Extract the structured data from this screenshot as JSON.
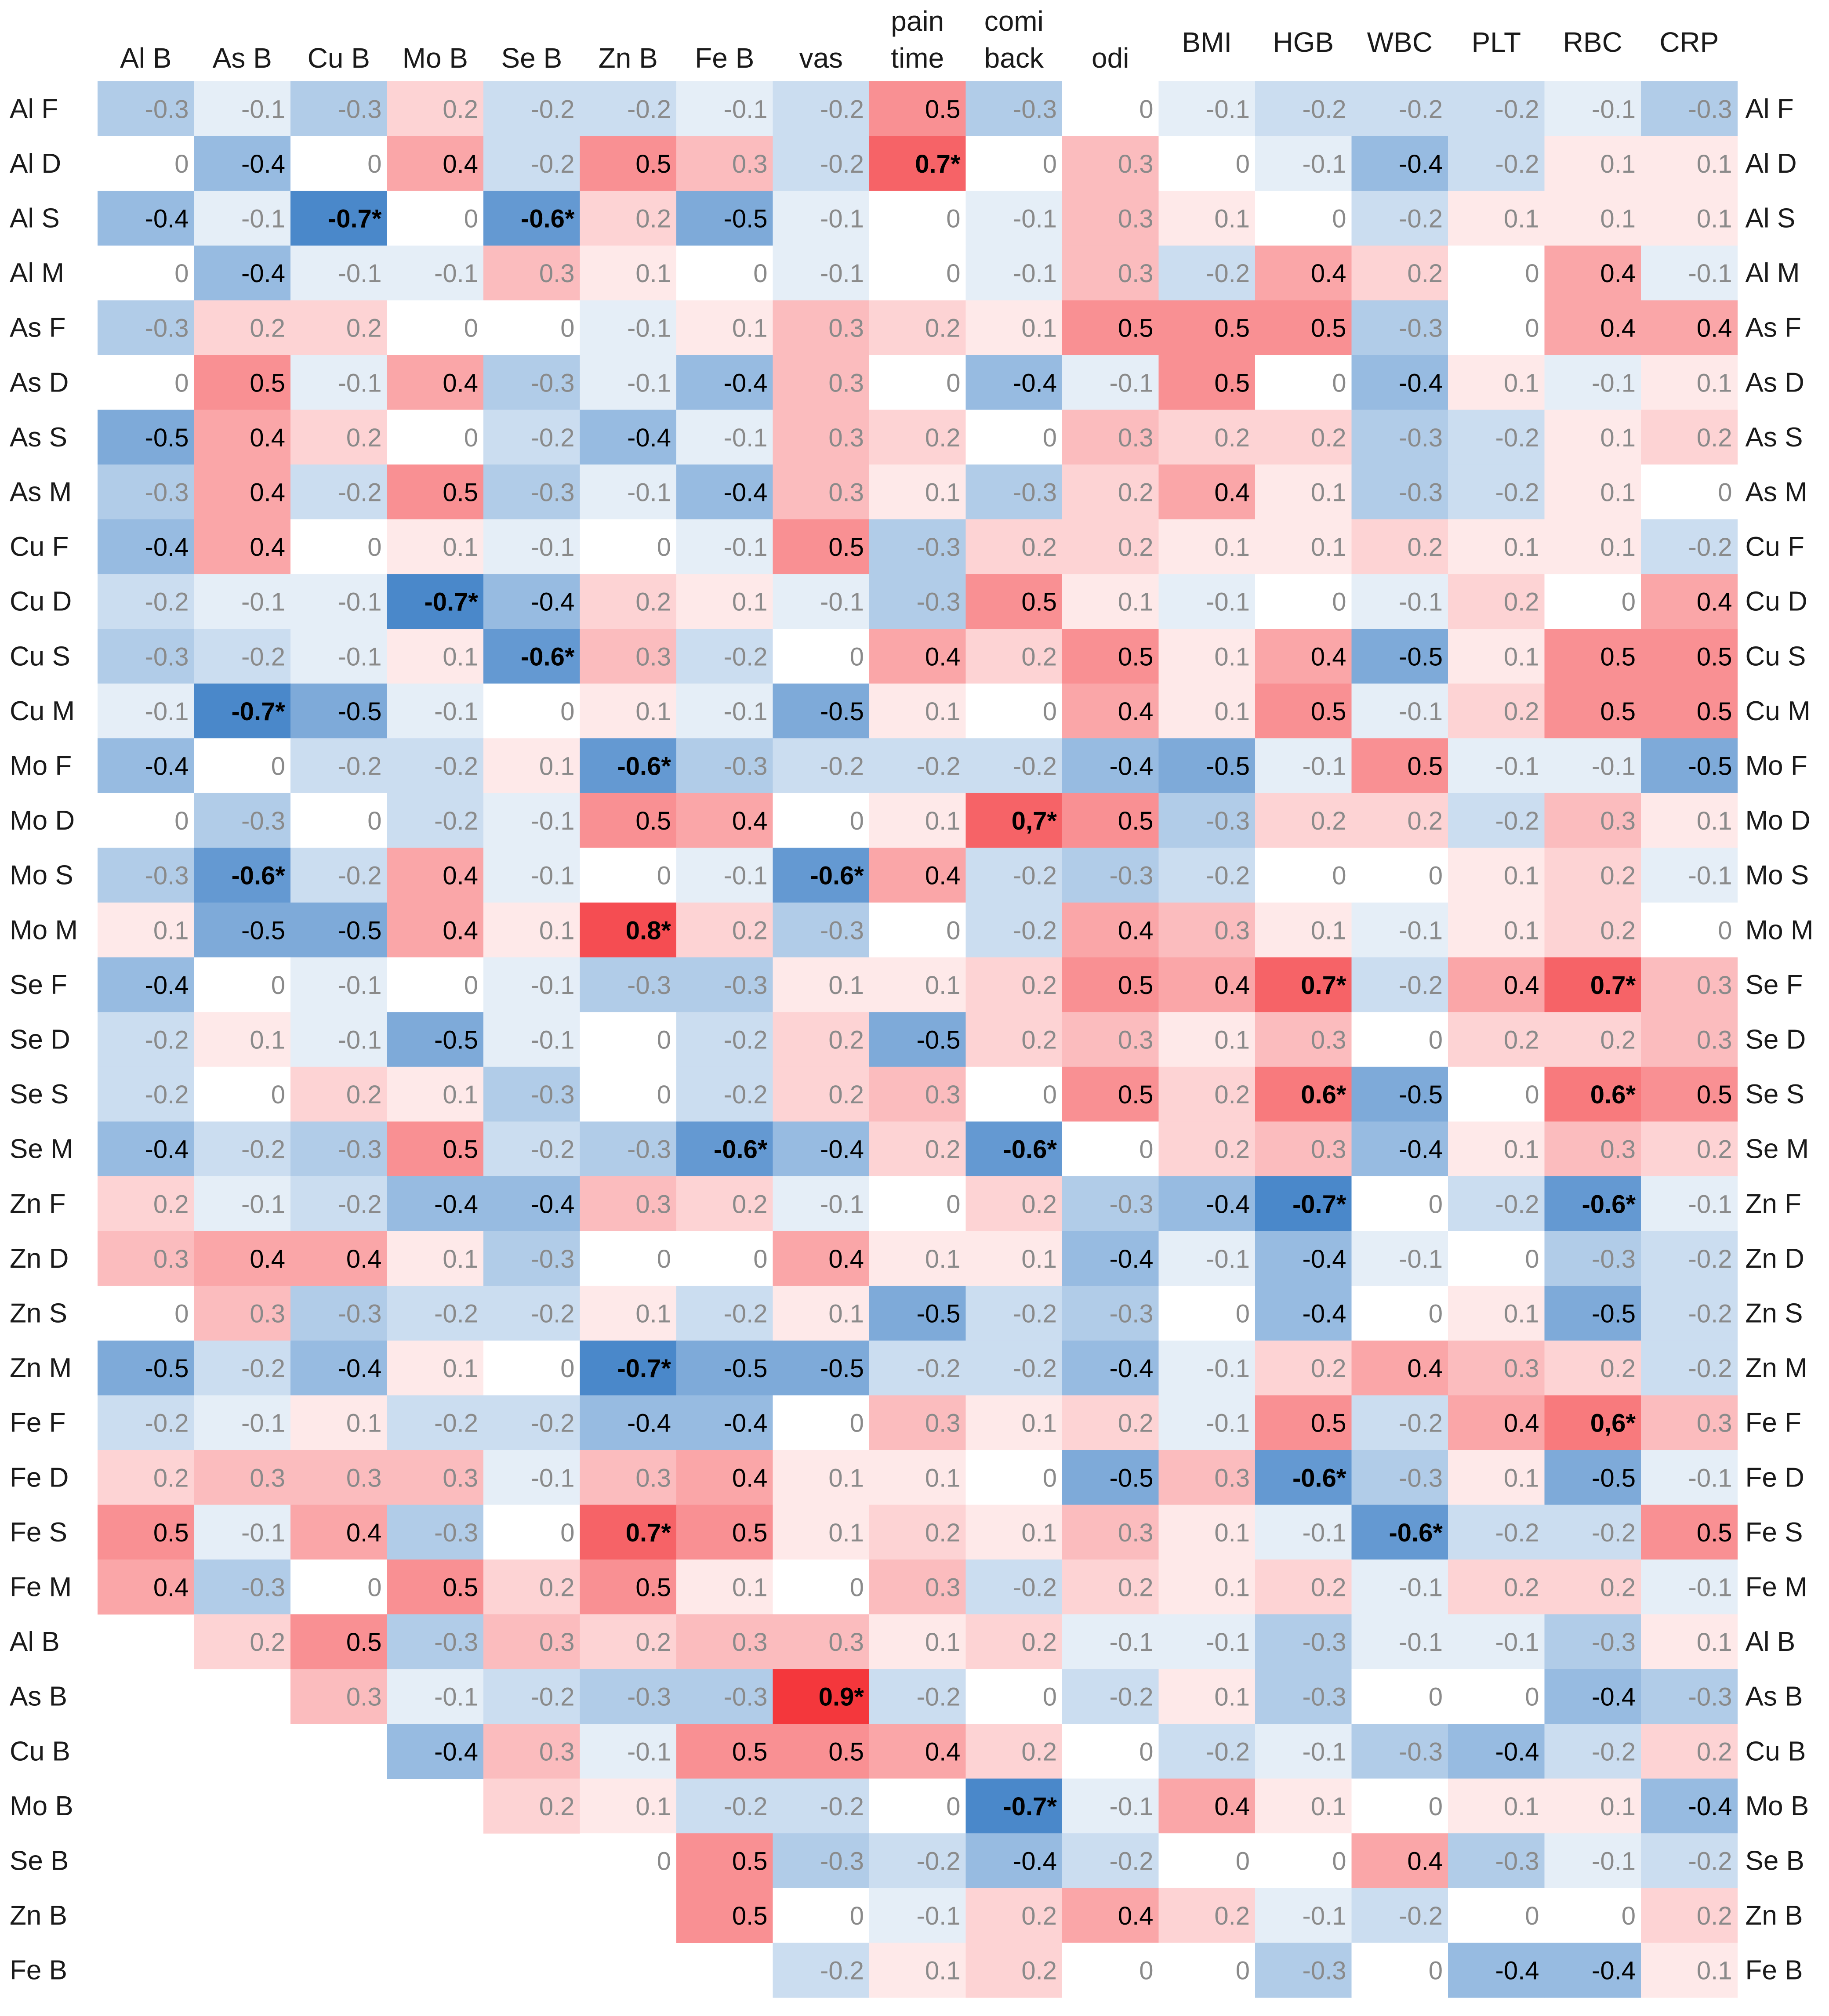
{
  "chart_data": {
    "type": "heatmap",
    "columns": [
      "Al B",
      "As B",
      "Cu B",
      "Mo B",
      "Se B",
      "Zn B",
      "Fe B",
      "vas",
      "pain time",
      "comi back",
      "odi",
      "BMI",
      "HGB",
      "WBC",
      "PLT",
      "RBC",
      "CRP"
    ],
    "rows": [
      "Al F",
      "Al D",
      "Al S",
      "Al M",
      "As F",
      "As D",
      "As S",
      "As M",
      "Cu F",
      "Cu D",
      "Cu S",
      "Cu M",
      "Mo F",
      "Mo D",
      "Mo S",
      "Mo M",
      "Se F",
      "Se D",
      "Se S",
      "Se M",
      "Zn F",
      "Zn D",
      "Zn S",
      "Zn M",
      "Fe F",
      "Fe D",
      "Fe S",
      "Fe M",
      "Al B",
      "As B",
      "Cu B",
      "Mo B",
      "Se B",
      "Zn B",
      "Fe B"
    ],
    "cells": [
      [
        "-0.3",
        "-0.1",
        "-0.3",
        "0.2",
        "-0.2",
        "-0.2",
        "-0.1",
        "-0.2",
        "0.5",
        "-0.3",
        "0",
        "-0.1",
        "-0.2",
        "-0.2",
        "-0.2",
        "-0.1",
        "-0.3"
      ],
      [
        "0",
        "-0.4",
        "0",
        "0.4",
        "-0.2",
        "0.5",
        "0.3",
        "-0.2",
        "0.7*",
        "0",
        "0.3",
        "0",
        "-0.1",
        "-0.4",
        "-0.2",
        "0.1",
        "0.1"
      ],
      [
        "-0.4",
        "-0.1",
        "-0.7*",
        "0",
        "-0.6*",
        "0.2",
        "-0.5",
        "-0.1",
        "0",
        "-0.1",
        "0.3",
        "0.1",
        "0",
        "-0.2",
        "0.1",
        "0.1",
        "0.1"
      ],
      [
        "0",
        "-0.4",
        "-0.1",
        "-0.1",
        "0.3",
        "0.1",
        "0",
        "-0.1",
        "0",
        "-0.1",
        "0.3",
        "-0.2",
        "0.4",
        "0.2",
        "0",
        "0.4",
        "-0.1"
      ],
      [
        "-0.3",
        "0.2",
        "0.2",
        "0",
        "0",
        "-0.1",
        "0.1",
        "0.3",
        "0.2",
        "0.1",
        "0.5",
        "0.5",
        "0.5",
        "-0.3",
        "0",
        "0.4",
        "0.4"
      ],
      [
        "0",
        "0.5",
        "-0.1",
        "0.4",
        "-0.3",
        "-0.1",
        "-0.4",
        "0.3",
        "0",
        "-0.4",
        "-0.1",
        "0.5",
        "0",
        "-0.4",
        "0.1",
        "-0.1",
        "0.1"
      ],
      [
        "-0.5",
        "0.4",
        "0.2",
        "0",
        "-0.2",
        "-0.4",
        "-0.1",
        "0.3",
        "0.2",
        "0",
        "0.3",
        "0.2",
        "0.2",
        "-0.3",
        "-0.2",
        "0.1",
        "0.2"
      ],
      [
        "-0.3",
        "0.4",
        "-0.2",
        "0.5",
        "-0.3",
        "-0.1",
        "-0.4",
        "0.3",
        "0.1",
        "-0.3",
        "0.2",
        "0.4",
        "0.1",
        "-0.3",
        "-0.2",
        "0.1",
        "0"
      ],
      [
        "-0.4",
        "0.4",
        "0",
        "0.1",
        "-0.1",
        "0",
        "-0.1",
        "0.5",
        "-0.3",
        "0.2",
        "0.2",
        "0.1",
        "0.1",
        "0.2",
        "0.1",
        "0.1",
        "-0.2"
      ],
      [
        "-0.2",
        "-0.1",
        "-0.1",
        "-0.7*",
        "-0.4",
        "0.2",
        "0.1",
        "-0.1",
        "-0.3",
        "0.5",
        "0.1",
        "-0.1",
        "0",
        "-0.1",
        "0.2",
        "0",
        "0.4"
      ],
      [
        "-0.3",
        "-0.2",
        "-0.1",
        "0.1",
        "-0.6*",
        "0.3",
        "-0.2",
        "0",
        "0.4",
        "0.2",
        "0.5",
        "0.1",
        "0.4",
        "-0.5",
        "0.1",
        "0.5",
        "0.5"
      ],
      [
        "-0.1",
        "-0.7*",
        "-0.5",
        "-0.1",
        "0",
        "0.1",
        "-0.1",
        "-0.5",
        "0.1",
        "0",
        "0.4",
        "0.1",
        "0.5",
        "-0.1",
        "0.2",
        "0.5",
        "0.5"
      ],
      [
        "-0.4",
        "0",
        "-0.2",
        "-0.2",
        "0.1",
        "-0.6*",
        "-0.3",
        "-0.2",
        "-0.2",
        "-0.2",
        "-0.4",
        "-0.5",
        "-0.1",
        "0.5",
        "-0.1",
        "-0.1",
        "-0.5"
      ],
      [
        "0",
        "-0.3",
        "0",
        "-0.2",
        "-0.1",
        "0.5",
        "0.4",
        "0",
        "0.1",
        "0,7*",
        "0.5",
        "-0.3",
        "0.2",
        "0.2",
        "-0.2",
        "0.3",
        "0.1"
      ],
      [
        "-0.3",
        "-0.6*",
        "-0.2",
        "0.4",
        "-0.1",
        "0",
        "-0.1",
        "-0.6*",
        "0.4",
        "-0.2",
        "-0.3",
        "-0.2",
        "0",
        "0",
        "0.1",
        "0.2",
        "-0.1"
      ],
      [
        "0.1",
        "-0.5",
        "-0.5",
        "0.4",
        "0.1",
        "0.8*",
        "0.2",
        "-0.3",
        "0",
        "-0.2",
        "0.4",
        "0.3",
        "0.1",
        "-0.1",
        "0.1",
        "0.2",
        "0"
      ],
      [
        "-0.4",
        "0",
        "-0.1",
        "0",
        "-0.1",
        "-0.3",
        "-0.3",
        "0.1",
        "0.1",
        "0.2",
        "0.5",
        "0.4",
        "0.7*",
        "-0.2",
        "0.4",
        "0.7*",
        "0.3"
      ],
      [
        "-0.2",
        "0.1",
        "-0.1",
        "-0.5",
        "-0.1",
        "0",
        "-0.2",
        "0.2",
        "-0.5",
        "0.2",
        "0.3",
        "0.1",
        "0.3",
        "0",
        "0.2",
        "0.2",
        "0.3"
      ],
      [
        "-0.2",
        "0",
        "0.2",
        "0.1",
        "-0.3",
        "0",
        "-0.2",
        "0.2",
        "0.3",
        "0",
        "0.5",
        "0.2",
        "0.6*",
        "-0.5",
        "0",
        "0.6*",
        "0.5"
      ],
      [
        "-0.4",
        "-0.2",
        "-0.3",
        "0.5",
        "-0.2",
        "-0.3",
        "-0.6*",
        "-0.4",
        "0.2",
        "-0.6*",
        "0",
        "0.2",
        "0.3",
        "-0.4",
        "0.1",
        "0.3",
        "0.2"
      ],
      [
        "0.2",
        "-0.1",
        "-0.2",
        "-0.4",
        "-0.4",
        "0.3",
        "0.2",
        "-0.1",
        "0",
        "0.2",
        "-0.3",
        "-0.4",
        "-0.7*",
        "0",
        "-0.2",
        "-0.6*",
        "-0.1"
      ],
      [
        "0.3",
        "0.4",
        "0.4",
        "0.1",
        "-0.3",
        "0",
        "0",
        "0.4",
        "0.1",
        "0.1",
        "-0.4",
        "-0.1",
        "-0.4",
        "-0.1",
        "0",
        "-0.3",
        "-0.2"
      ],
      [
        "0",
        "0.3",
        "-0.3",
        "-0.2",
        "-0.2",
        "0.1",
        "-0.2",
        "0.1",
        "-0.5",
        "-0.2",
        "-0.3",
        "0",
        "-0.4",
        "0",
        "0.1",
        "-0.5",
        "-0.2"
      ],
      [
        "-0.5",
        "-0.2",
        "-0.4",
        "0.1",
        "0",
        "-0.7*",
        "-0.5",
        "-0.5",
        "-0.2",
        "-0.2",
        "-0.4",
        "-0.1",
        "0.2",
        "0.4",
        "0.3",
        "0.2",
        "-0.2"
      ],
      [
        "-0.2",
        "-0.1",
        "0.1",
        "-0.2",
        "-0.2",
        "-0.4",
        "-0.4",
        "0",
        "0.3",
        "0.1",
        "0.2",
        "-0.1",
        "0.5",
        "-0.2",
        "0.4",
        "0,6*",
        "0.3"
      ],
      [
        "0.2",
        "0.3",
        "0.3",
        "0.3",
        "-0.1",
        "0.3",
        "0.4",
        "0.1",
        "0.1",
        "0",
        "-0.5",
        "0.3",
        "-0.6*",
        "-0.3",
        "0.1",
        "-0.5",
        "-0.1"
      ],
      [
        "0.5",
        "-0.1",
        "0.4",
        "-0.3",
        "0",
        "0.7*",
        "0.5",
        "0.1",
        "0.2",
        "0.1",
        "0.3",
        "0.1",
        "-0.1",
        "-0.6*",
        "-0.2",
        "-0.2",
        "0.5"
      ],
      [
        "0.4",
        "-0.3",
        "0",
        "0.5",
        "0.2",
        "0.5",
        "0.1",
        "0",
        "0.3",
        "-0.2",
        "0.2",
        "0.1",
        "0.2",
        "-0.1",
        "0.2",
        "0.2",
        "-0.1"
      ],
      [
        null,
        "0.2",
        "0.5",
        "-0.3",
        "0.3",
        "0.2",
        "0.3",
        "0.3",
        "0.1",
        "0.2",
        "-0.1",
        "-0.1",
        "-0.3",
        "-0.1",
        "-0.1",
        "-0.3",
        "0.1"
      ],
      [
        null,
        null,
        "0.3",
        "-0.1",
        "-0.2",
        "-0.3",
        "-0.3",
        "0.9*",
        "-0.2",
        "0",
        "-0.2",
        "0.1",
        "-0.3",
        "0",
        "0",
        "-0.4",
        "-0.3"
      ],
      [
        null,
        null,
        null,
        "-0.4",
        "0.3",
        "-0.1",
        "0.5",
        "0.5",
        "0.4",
        "0.2",
        "0",
        "-0.2",
        "-0.1",
        "-0.3",
        "-0.4",
        "-0.2",
        "0.2"
      ],
      [
        null,
        null,
        null,
        null,
        "0.2",
        "0.1",
        "-0.2",
        "-0.2",
        "0",
        "-0.7*",
        "-0.1",
        "0.4",
        "0.1",
        "0",
        "0.1",
        "0.1",
        "-0.4"
      ],
      [
        null,
        null,
        null,
        null,
        null,
        "0",
        "0.5",
        "-0.3",
        "-0.2",
        "-0.4",
        "-0.2",
        "0",
        "0",
        "0.4",
        "-0.3",
        "-0.1",
        "-0.2"
      ],
      [
        null,
        null,
        null,
        null,
        null,
        null,
        "0.5",
        "0",
        "-0.1",
        "0.2",
        "0.4",
        "0.2",
        "-0.1",
        "-0.2",
        "0",
        "0",
        "0.2"
      ],
      [
        null,
        null,
        null,
        null,
        null,
        null,
        null,
        "-0.2",
        "0.1",
        "0.2",
        "0",
        "0",
        "-0.3",
        "0",
        "-0.4",
        "-0.4",
        "0.1"
      ]
    ],
    "legend": "none",
    "significance_marker": "*"
  }
}
